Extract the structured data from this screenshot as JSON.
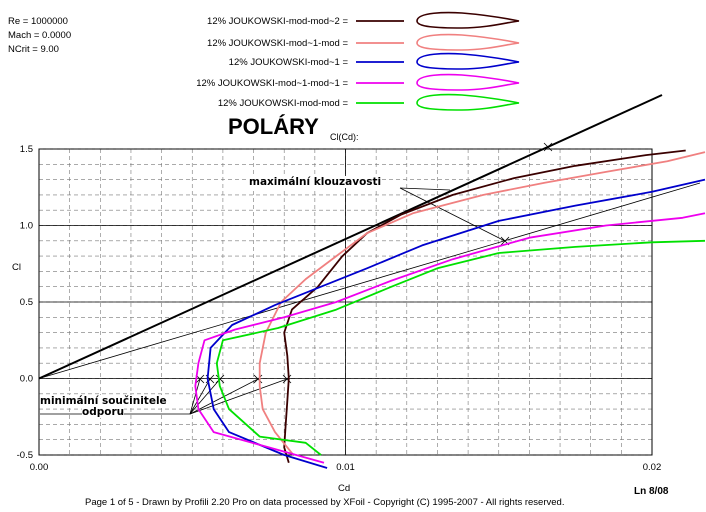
{
  "info": {
    "re": "Re = 1000000",
    "mach": "Mach = 0.0000",
    "ncrit": "NCrit = 9.00"
  },
  "title": "POLÁRY",
  "subtitle": "Cl(Cd):",
  "footer": "Page 1 of 5   -   Drawn by Profili 2.20 Pro on data processed by  XFoil - Copyright (C) 1995-2007 - All rights reserved.",
  "footer_right": "Ln 8/08",
  "annotations": {
    "max_glide": "maximální klouzavosti",
    "min_drag_line1": "minimální součinitele",
    "min_drag_line2": "odporu"
  },
  "chart_data": {
    "type": "line",
    "xlabel": "Cd",
    "ylabel": "Cl",
    "xlim": [
      0,
      0.022
    ],
    "ylim": [
      -0.5,
      1.5
    ],
    "x_ticks": [
      "0.00",
      "0.01",
      "0.02"
    ],
    "y_ticks": [
      "-0.5",
      "0.0",
      "0.5",
      "1.0",
      "1.5"
    ],
    "grid": true,
    "legend_position": "top",
    "series": [
      {
        "name": "12% JOUKOWSKI-mod-mod~2 =",
        "color": "#3a0000",
        "points": [
          [
            0.00815,
            -0.55
          ],
          [
            0.008,
            -0.45
          ],
          [
            0.00805,
            -0.3
          ],
          [
            0.0081,
            -0.15
          ],
          [
            0.00815,
            0.0
          ],
          [
            0.0081,
            0.15
          ],
          [
            0.008,
            0.3
          ],
          [
            0.00825,
            0.45
          ],
          [
            0.0091,
            0.6
          ],
          [
            0.0099,
            0.8
          ],
          [
            0.0107,
            0.95
          ],
          [
            0.0118,
            1.07
          ],
          [
            0.0135,
            1.2
          ],
          [
            0.0155,
            1.31
          ],
          [
            0.0175,
            1.39
          ],
          [
            0.0198,
            1.46
          ],
          [
            0.0211,
            1.49
          ]
        ]
      },
      {
        "name": "12% JOUKOWSKI-mod~1-mod =",
        "color": "#f08080",
        "points": [
          [
            0.0083,
            -0.5
          ],
          [
            0.0077,
            -0.35
          ],
          [
            0.0073,
            -0.2
          ],
          [
            0.0072,
            -0.05
          ],
          [
            0.0072,
            0.1
          ],
          [
            0.0074,
            0.3
          ],
          [
            0.0079,
            0.5
          ],
          [
            0.0087,
            0.65
          ],
          [
            0.0097,
            0.8
          ],
          [
            0.0107,
            0.95
          ],
          [
            0.0122,
            1.08
          ],
          [
            0.0145,
            1.2
          ],
          [
            0.0165,
            1.28
          ],
          [
            0.0185,
            1.35
          ],
          [
            0.0205,
            1.42
          ],
          [
            0.022,
            1.48
          ]
        ]
      },
      {
        "name": "12% JOUKOWSKI-mod~1 =",
        "color": "#0000cc",
        "points": [
          [
            0.0094,
            -0.6
          ],
          [
            0.008,
            -0.5
          ],
          [
            0.0062,
            -0.35
          ],
          [
            0.0057,
            -0.2
          ],
          [
            0.0055,
            0.0
          ],
          [
            0.0056,
            0.2
          ],
          [
            0.0063,
            0.35
          ],
          [
            0.0077,
            0.48
          ],
          [
            0.0092,
            0.6
          ],
          [
            0.0107,
            0.72
          ],
          [
            0.0125,
            0.87
          ],
          [
            0.015,
            1.03
          ],
          [
            0.0175,
            1.13
          ],
          [
            0.02,
            1.22
          ],
          [
            0.022,
            1.3
          ]
        ]
      },
      {
        "name": "12% JOUKOWSKI-mod~1-mod~1 =",
        "color": "#ee00ee",
        "points": [
          [
            0.0093,
            -0.55
          ],
          [
            0.0075,
            -0.45
          ],
          [
            0.0057,
            -0.35
          ],
          [
            0.0052,
            -0.2
          ],
          [
            0.0051,
            -0.05
          ],
          [
            0.0052,
            0.1
          ],
          [
            0.0054,
            0.25
          ],
          [
            0.0064,
            0.32
          ],
          [
            0.008,
            0.4
          ],
          [
            0.0097,
            0.5
          ],
          [
            0.0115,
            0.64
          ],
          [
            0.0135,
            0.78
          ],
          [
            0.016,
            0.92
          ],
          [
            0.0185,
            1.0
          ],
          [
            0.021,
            1.05
          ],
          [
            0.022,
            1.08
          ]
        ]
      },
      {
        "name": "12% JOUKOWSKI-mod-mod =",
        "color": "#00e000",
        "points": [
          [
            0.0092,
            -0.5
          ],
          [
            0.0087,
            -0.42
          ],
          [
            0.0072,
            -0.38
          ],
          [
            0.0062,
            -0.2
          ],
          [
            0.0059,
            -0.05
          ],
          [
            0.0058,
            0.1
          ],
          [
            0.006,
            0.25
          ],
          [
            0.0078,
            0.33
          ],
          [
            0.0097,
            0.45
          ],
          [
            0.0115,
            0.6
          ],
          [
            0.013,
            0.72
          ],
          [
            0.015,
            0.82
          ],
          [
            0.0175,
            0.86
          ],
          [
            0.02,
            0.89
          ],
          [
            0.022,
            0.9
          ]
        ]
      }
    ]
  }
}
